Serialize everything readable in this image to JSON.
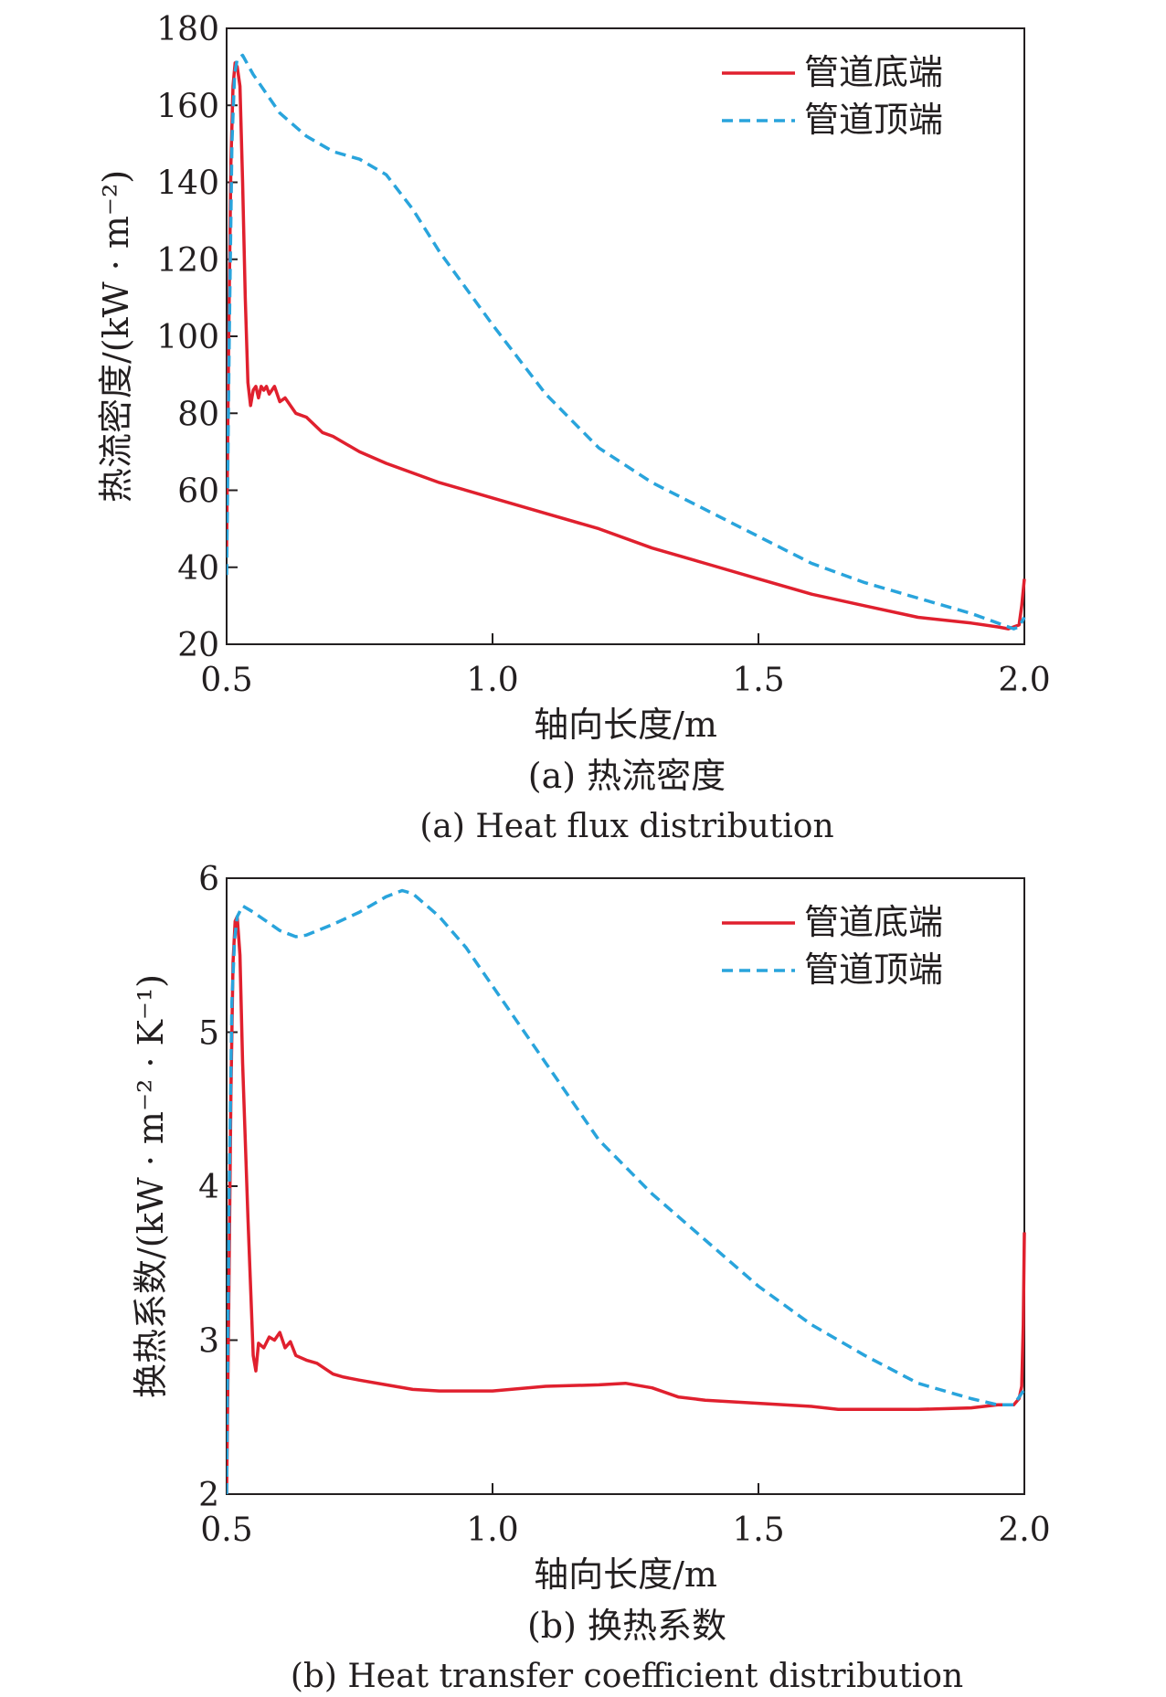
{
  "chart_data": [
    {
      "type": "line",
      "caption_cn": "(a) 热流密度",
      "caption_en": "(a) Heat flux distribution",
      "xlabel": "轴向长度/m",
      "ylabel": "热流密度/(kW · m⁻²)",
      "xlim": [
        0.5,
        2.0
      ],
      "ylim": [
        20,
        180
      ],
      "xticks": [
        0.5,
        1.0,
        1.5,
        2.0
      ],
      "xtick_labels": [
        "0.5",
        "1.0",
        "1.5",
        "2.0"
      ],
      "yticks": [
        20,
        40,
        60,
        80,
        100,
        120,
        140,
        160,
        180
      ],
      "ytick_labels": [
        "20",
        "40",
        "60",
        "80",
        "100",
        "120",
        "140",
        "160",
        "180"
      ],
      "grid": false,
      "legend_position": "top-right",
      "series": [
        {
          "name": "管道底端",
          "color": "#e0202e",
          "style": "solid",
          "x": [
            0.5,
            0.504,
            0.508,
            0.512,
            0.516,
            0.52,
            0.525,
            0.53,
            0.535,
            0.54,
            0.545,
            0.55,
            0.555,
            0.56,
            0.565,
            0.57,
            0.575,
            0.58,
            0.585,
            0.59,
            0.6,
            0.61,
            0.62,
            0.63,
            0.65,
            0.68,
            0.7,
            0.75,
            0.8,
            0.9,
            1.0,
            1.1,
            1.2,
            1.3,
            1.35,
            1.4,
            1.5,
            1.6,
            1.7,
            1.8,
            1.9,
            1.95,
            1.97,
            1.99,
            1.995,
            2.0
          ],
          "values": [
            45,
            100,
            145,
            165,
            171,
            170,
            165,
            140,
            110,
            88,
            82,
            86,
            87,
            84,
            87,
            86,
            87,
            85,
            86,
            87,
            83,
            84,
            82,
            80,
            79,
            75,
            74,
            70,
            67,
            62,
            58,
            54,
            50,
            45,
            43,
            41,
            37,
            33,
            30,
            27,
            25.5,
            24.5,
            24,
            25,
            30,
            37
          ]
        },
        {
          "name": "管道顶端",
          "color": "#29a4dc",
          "style": "dashed",
          "x": [
            0.5,
            0.505,
            0.51,
            0.515,
            0.52,
            0.53,
            0.55,
            0.6,
            0.65,
            0.7,
            0.75,
            0.8,
            0.85,
            0.9,
            1.0,
            1.1,
            1.2,
            1.3,
            1.4,
            1.5,
            1.6,
            1.7,
            1.8,
            1.9,
            1.95,
            1.98,
            1.99,
            2.0
          ],
          "values": [
            38,
            100,
            150,
            168,
            172,
            173,
            168,
            158,
            152,
            148,
            146,
            142,
            133,
            122,
            103,
            85,
            71,
            62,
            55,
            48,
            41,
            36,
            32,
            28,
            25.5,
            24,
            24.5,
            27
          ]
        }
      ]
    },
    {
      "type": "line",
      "caption_cn": "(b) 换热系数",
      "caption_en": "(b) Heat transfer coefficient distribution",
      "xlabel": "轴向长度/m",
      "ylabel": "换热系数/(kW · m⁻² · K⁻¹)",
      "xlim": [
        0.5,
        2.0
      ],
      "ylim": [
        2,
        6
      ],
      "xticks": [
        0.5,
        1.0,
        1.5,
        2.0
      ],
      "xtick_labels": [
        "0.5",
        "1.0",
        "1.5",
        "2.0"
      ],
      "yticks": [
        2,
        3,
        4,
        5,
        6
      ],
      "ytick_labels": [
        "2",
        "3",
        "4",
        "5",
        "6"
      ],
      "grid": false,
      "legend_position": "top-right",
      "series": [
        {
          "name": "管道底端",
          "color": "#e0202e",
          "style": "solid",
          "x": [
            0.5,
            0.504,
            0.508,
            0.512,
            0.516,
            0.52,
            0.525,
            0.53,
            0.54,
            0.55,
            0.555,
            0.56,
            0.57,
            0.58,
            0.59,
            0.6,
            0.61,
            0.62,
            0.63,
            0.65,
            0.67,
            0.7,
            0.72,
            0.75,
            0.8,
            0.85,
            0.9,
            1.0,
            1.1,
            1.2,
            1.25,
            1.3,
            1.35,
            1.4,
            1.5,
            1.6,
            1.65,
            1.7,
            1.8,
            1.9,
            1.95,
            1.98,
            1.99,
            1.995,
            1.998,
            2.0
          ],
          "values": [
            2.0,
            3.2,
            4.6,
            5.45,
            5.72,
            5.75,
            5.5,
            4.8,
            3.8,
            2.9,
            2.8,
            2.98,
            2.95,
            3.02,
            3.0,
            3.05,
            2.95,
            2.99,
            2.9,
            2.87,
            2.85,
            2.78,
            2.76,
            2.74,
            2.71,
            2.68,
            2.67,
            2.67,
            2.7,
            2.71,
            2.72,
            2.69,
            2.63,
            2.61,
            2.59,
            2.57,
            2.55,
            2.55,
            2.55,
            2.56,
            2.58,
            2.58,
            2.62,
            2.7,
            3.1,
            3.7
          ]
        },
        {
          "name": "管道顶端",
          "color": "#29a4dc",
          "style": "dashed",
          "x": [
            0.5,
            0.505,
            0.51,
            0.515,
            0.52,
            0.53,
            0.55,
            0.6,
            0.63,
            0.65,
            0.7,
            0.75,
            0.8,
            0.83,
            0.85,
            0.9,
            0.95,
            1.0,
            1.1,
            1.2,
            1.3,
            1.4,
            1.5,
            1.6,
            1.7,
            1.8,
            1.9,
            1.95,
            1.98,
            2.0
          ],
          "values": [
            2.0,
            4.0,
            5.2,
            5.6,
            5.75,
            5.82,
            5.78,
            5.66,
            5.62,
            5.63,
            5.7,
            5.78,
            5.88,
            5.92,
            5.9,
            5.75,
            5.55,
            5.3,
            4.8,
            4.3,
            3.95,
            3.65,
            3.35,
            3.1,
            2.9,
            2.72,
            2.62,
            2.58,
            2.58,
            2.68
          ]
        }
      ]
    }
  ]
}
